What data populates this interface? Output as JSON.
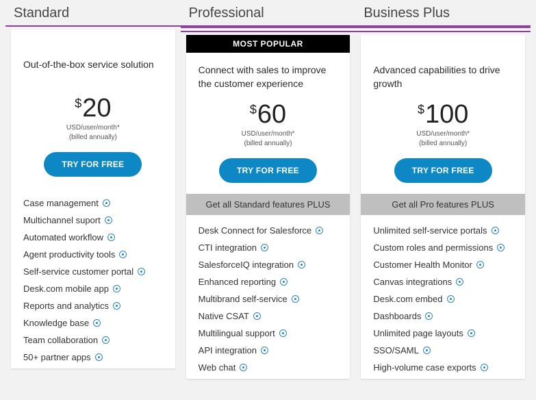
{
  "styling": {
    "page_bg": "#f2f2f2",
    "card_bg": "#ffffff",
    "accent_underline": "#8f3ea3",
    "cta_bg": "#0d88c4",
    "cta_fg": "#ffffff",
    "badge_bg": "#000000",
    "badge_fg": "#ffffff",
    "plus_band_bg": "#bfbfbf",
    "info_icon_color": "#2a84c0",
    "title_fontsize": 20,
    "price_fontsize": 38,
    "feature_fontsize": 13
  },
  "currency_symbol": "$",
  "price_unit": "USD/user/month*",
  "billing_note": "(billed annually)",
  "cta_label": "TRY FOR FREE",
  "plans": [
    {
      "name": "Standard",
      "underline_style": "single",
      "badge": null,
      "tagline": "Out-of-the-box service solution",
      "price": "20",
      "plus_band": null,
      "features": [
        "Case management",
        "Multichannel suport",
        "Automated workflow",
        "Agent productivity tools",
        "Self-service customer portal",
        "Desk.com mobile app",
        "Reports and analytics",
        "Knowledge base",
        "Team collaboration",
        "50+ partner apps"
      ]
    },
    {
      "name": "Professional",
      "underline_style": "double",
      "badge": "MOST POPULAR",
      "tagline": "Connect with sales to improve the customer experience",
      "price": "60",
      "plus_band": "Get all Standard features PLUS",
      "features": [
        "Desk Connect for Salesforce",
        "CTI integration",
        "SalesforceIQ integration",
        "Enhanced reporting",
        "Multibrand self-service",
        "Native CSAT",
        "Multilingual support",
        "API integration",
        "Web chat"
      ]
    },
    {
      "name": "Business Plus",
      "underline_style": "double",
      "badge": null,
      "tagline": "Advanced capabilities to drive growth",
      "price": "100",
      "plus_band": "Get all Pro features PLUS",
      "features": [
        "Unlimited self-service portals",
        "Custom roles and permissions",
        "Customer Health Monitor",
        "Canvas integrations",
        "Desk.com embed",
        "Dashboards",
        "Unlimited page layouts",
        "SSO/SAML",
        "High-volume case exports"
      ]
    }
  ]
}
